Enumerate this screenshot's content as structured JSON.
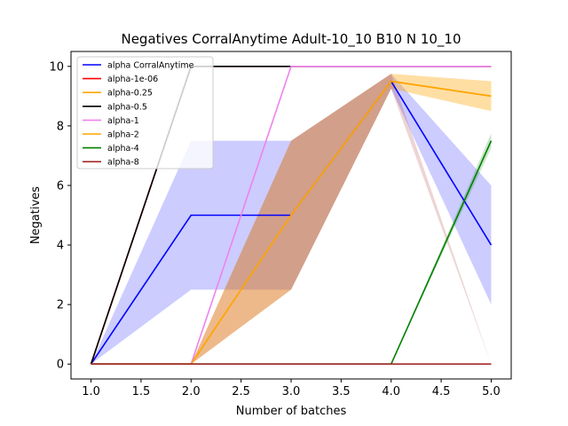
{
  "chart_data": {
    "type": "line",
    "title": "Negatives CorralAnytime Adult-10_10 B10 N 10_10",
    "xlabel": "Number of batches",
    "ylabel": "Negatives",
    "xlim": [
      0.8,
      5.2
    ],
    "ylim": [
      -0.5,
      10.5
    ],
    "xticks": [
      1.0,
      1.5,
      2.0,
      2.5,
      3.0,
      3.5,
      4.0,
      4.5,
      5.0
    ],
    "xtick_labels": [
      "1.0",
      "1.5",
      "2.0",
      "2.5",
      "3.0",
      "3.5",
      "4.0",
      "4.5",
      "5.0"
    ],
    "yticks": [
      0,
      2,
      4,
      6,
      8,
      10
    ],
    "ytick_labels": [
      "0",
      "2",
      "4",
      "6",
      "8",
      "10"
    ],
    "grid": false,
    "legend_position": "top-left",
    "x": [
      1,
      2,
      3,
      4,
      5
    ],
    "series": [
      {
        "name": "alpha CorralAnytime",
        "color": "#0000ff",
        "values": [
          0,
          5,
          5,
          9.5,
          4
        ],
        "band_low": [
          0,
          2.5,
          2.5,
          9.25,
          2
        ],
        "band_high": [
          0,
          7.5,
          7.5,
          9.75,
          6
        ]
      },
      {
        "name": "alpha-1e-06",
        "color": "#ff0000",
        "values": [
          0,
          10,
          10,
          10,
          10
        ]
      },
      {
        "name": "alpha-0.25",
        "color": "#ffa500",
        "values": [
          0,
          0,
          5,
          9.5,
          9
        ],
        "band_low": [
          0,
          0,
          2.5,
          9.25,
          8.5
        ],
        "band_high": [
          0,
          0,
          7.5,
          9.75,
          9.5
        ]
      },
      {
        "name": "alpha-0.5",
        "color": "#000000",
        "values": [
          0,
          10,
          10,
          10,
          10
        ]
      },
      {
        "name": "alpha-1",
        "color": "#ee82ee",
        "values": [
          0,
          0,
          10,
          10,
          10
        ]
      },
      {
        "name": "alpha-2",
        "color": "#ffa500",
        "values": [
          0,
          0,
          5,
          9.5,
          9
        ],
        "band_low": [
          0,
          0,
          2.5,
          9.25,
          8.5
        ],
        "band_high": [
          0,
          0,
          7.5,
          9.75,
          9.5
        ]
      },
      {
        "name": "alpha-4",
        "color": "#008000",
        "values": [
          0,
          0,
          0,
          0,
          7.5
        ],
        "band_low": [
          0,
          0,
          0,
          0,
          7.25
        ],
        "band_high": [
          0,
          0,
          0,
          0,
          7.75
        ]
      },
      {
        "name": "alpha-8",
        "color": "#a52a2a",
        "values": [
          0,
          0,
          5,
          9.5,
          0
        ],
        "band_only": true,
        "band_low": [
          0,
          0,
          2.5,
          9.25,
          0
        ],
        "band_high": [
          0,
          0,
          7.5,
          9.75,
          0
        ],
        "line_values": [
          0,
          0,
          0,
          0,
          0
        ]
      }
    ]
  }
}
